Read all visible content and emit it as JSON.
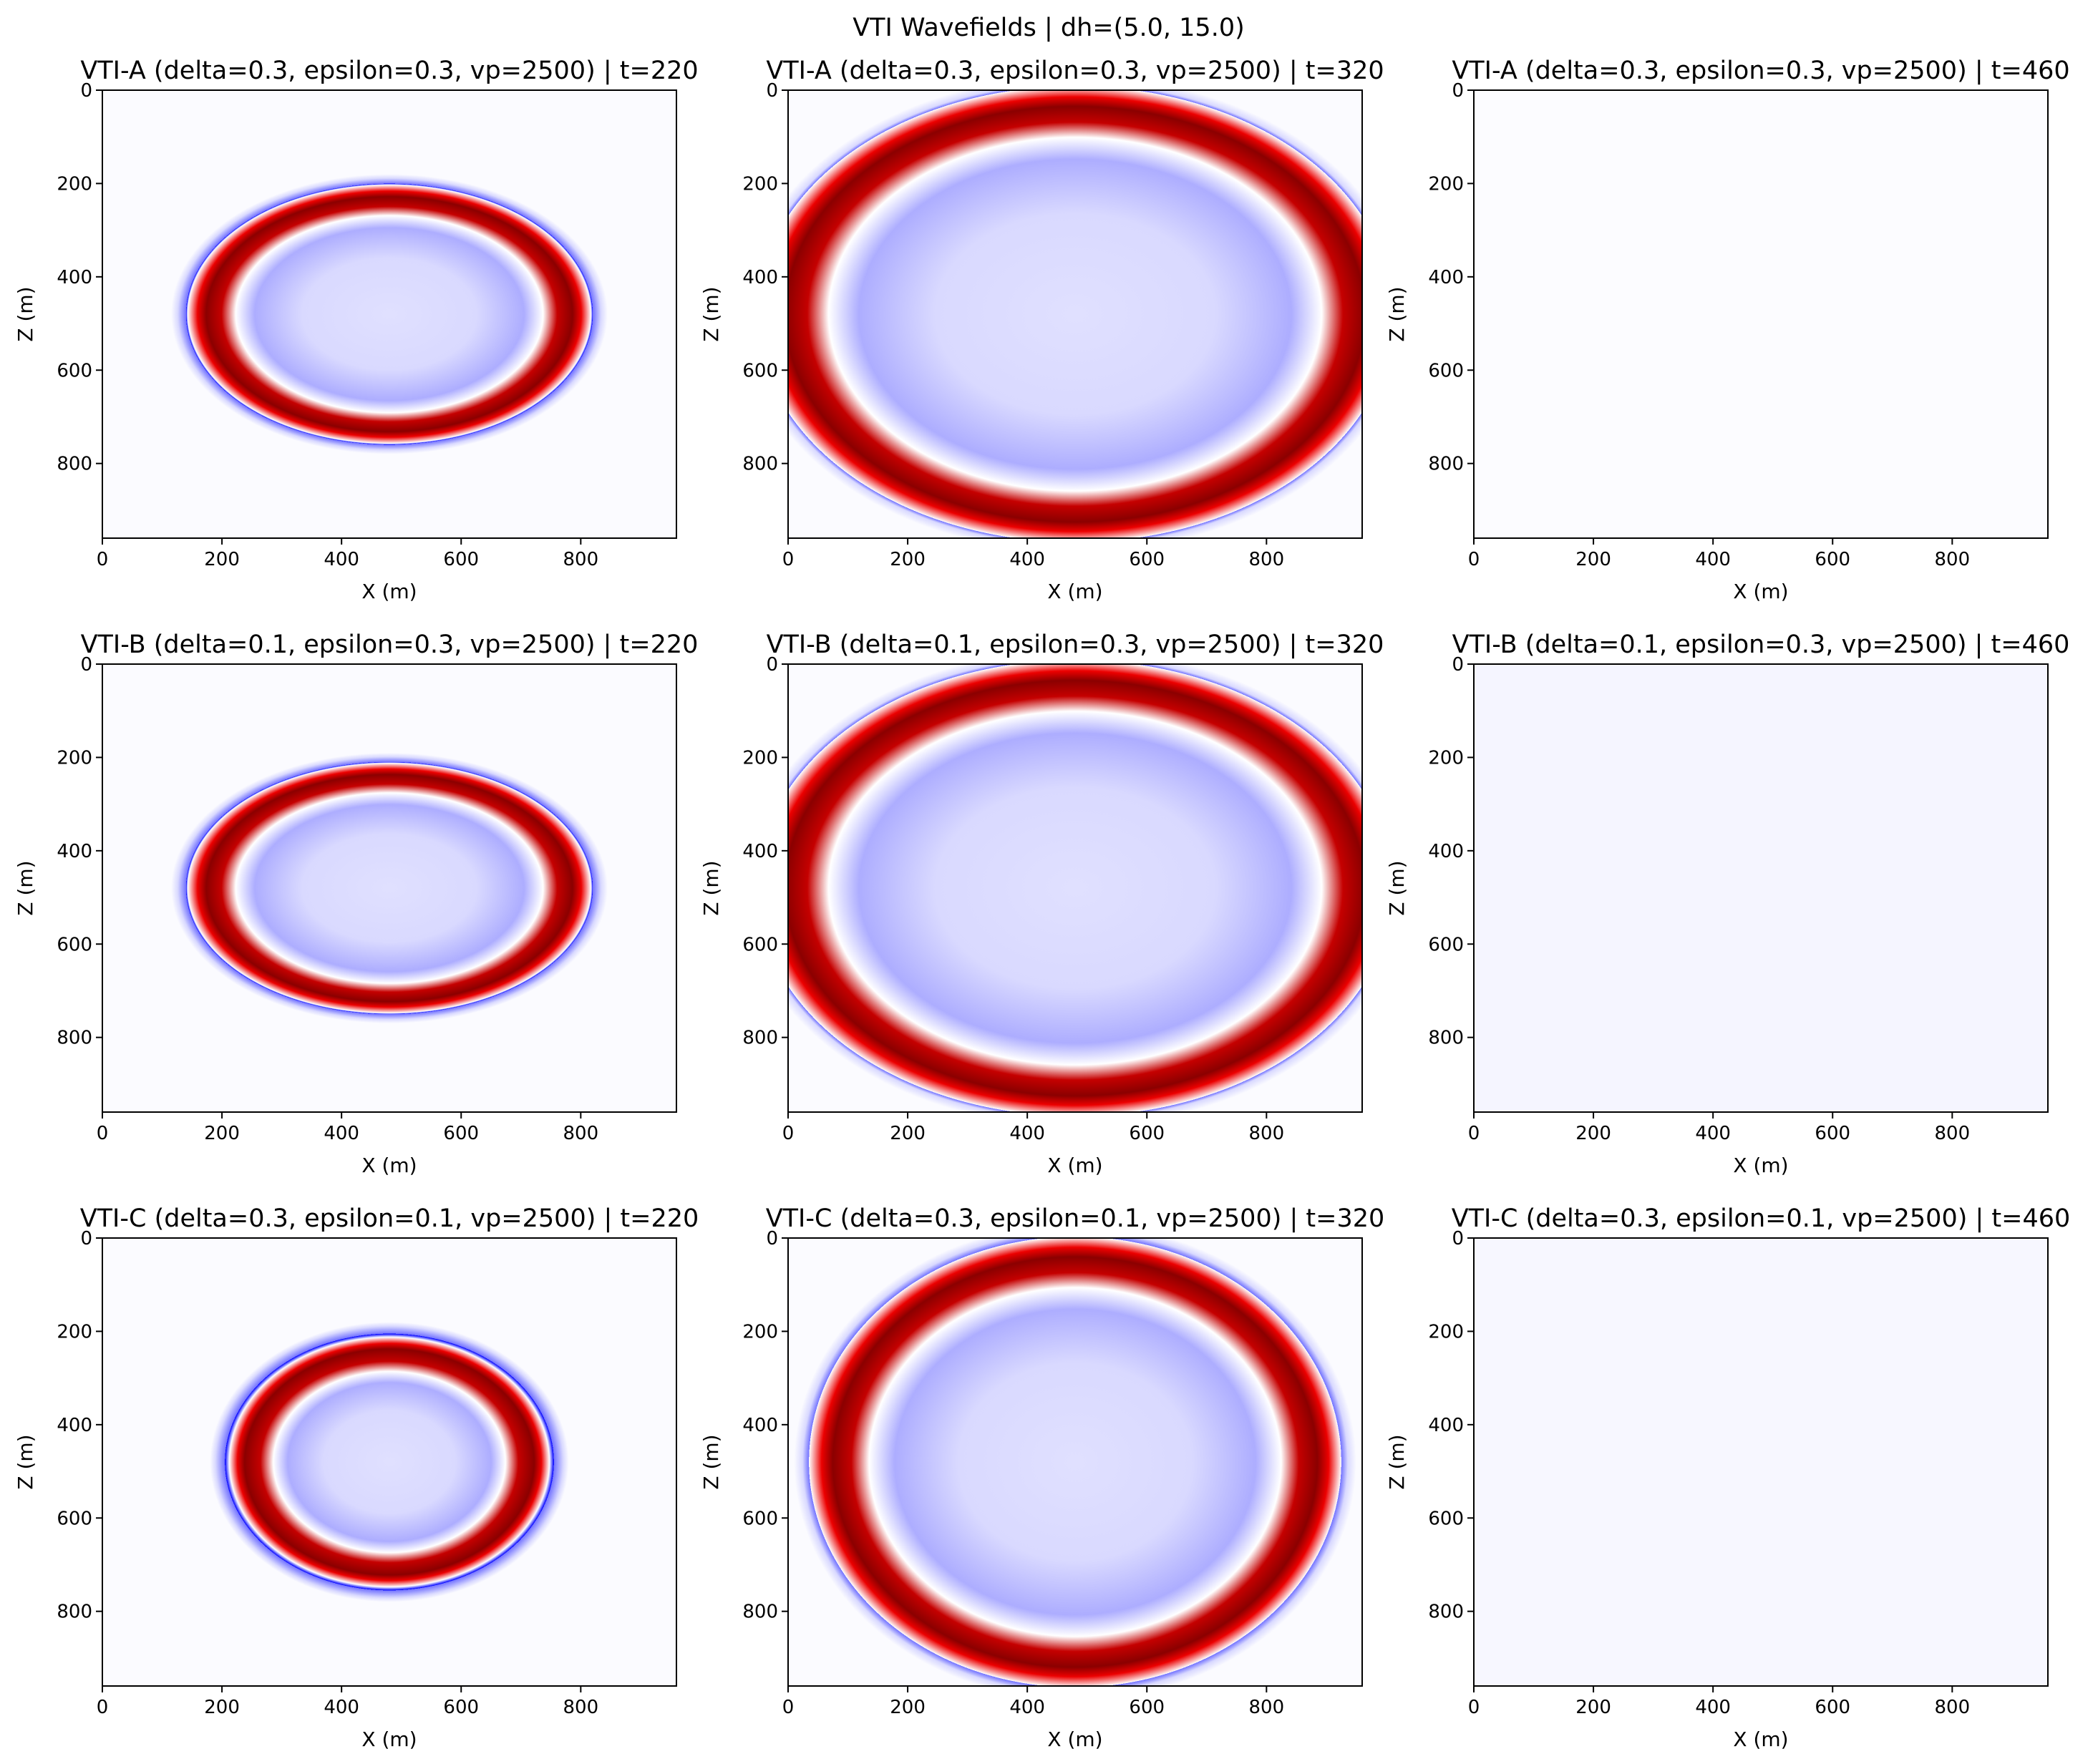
{
  "figure": {
    "title": "VTI Wavefields | dh=(5.0, 15.0)"
  },
  "colors": {
    "negative": "#0000ff",
    "zero": "#ffffff",
    "positive": "#ff0000",
    "positive_peak": "#8b0000",
    "frame": "#000000"
  },
  "chart_data": [
    {
      "type": "heatmap",
      "colormap": "seismic",
      "title": "VTI-A (delta=0.3, epsilon=0.3, vp=2500) | t=220",
      "model": "VTI-A",
      "delta": 0.3,
      "epsilon": 0.3,
      "vp": 2500,
      "t": 220,
      "wavefront": {
        "center_x": 480,
        "center_z": 480,
        "inner_rx": 265,
        "inner_rz": 200,
        "mid_rx": 310,
        "mid_rz": 245,
        "outer_rx": 365,
        "outer_rz": 300
      },
      "xlabel": "X (m)",
      "ylabel": "Z (m)",
      "xlim": [
        0,
        960
      ],
      "ylim": [
        960,
        0
      ],
      "xticks": [
        0,
        200,
        400,
        600,
        800
      ],
      "yticks": [
        0,
        200,
        400,
        600,
        800
      ]
    },
    {
      "type": "heatmap",
      "colormap": "seismic",
      "title": "VTI-A (delta=0.3, epsilon=0.3, vp=2500) | t=320",
      "model": "VTI-A",
      "delta": 0.3,
      "epsilon": 0.3,
      "vp": 2500,
      "t": 320,
      "wavefront": {
        "center_x": 480,
        "center_z": 480,
        "inner_rx": 425,
        "inner_rz": 410,
        "mid_rx": 490,
        "mid_rz": 455,
        "outer_rx": 555,
        "outer_rz": 510
      },
      "xlabel": "X (m)",
      "ylabel": "Z (m)",
      "xlim": [
        0,
        960
      ],
      "ylim": [
        960,
        0
      ],
      "xticks": [
        0,
        200,
        400,
        600,
        800
      ],
      "yticks": [
        0,
        200,
        400,
        600,
        800
      ]
    },
    {
      "type": "heatmap",
      "colormap": "seismic",
      "title": "VTI-A (delta=0.3, epsilon=0.3, vp=2500) | t=460",
      "model": "VTI-A",
      "delta": 0.3,
      "epsilon": 0.3,
      "vp": 2500,
      "t": 460,
      "wavefront": null,
      "background_level": 0.01,
      "xlabel": "X (m)",
      "ylabel": "Z (m)",
      "xlim": [
        0,
        960
      ],
      "ylim": [
        960,
        0
      ],
      "xticks": [
        0,
        200,
        400,
        600,
        800
      ],
      "yticks": [
        0,
        200,
        400,
        600,
        800
      ]
    },
    {
      "type": "heatmap",
      "colormap": "seismic",
      "title": "VTI-B (delta=0.1, epsilon=0.3, vp=2500) | t=220",
      "model": "VTI-B",
      "delta": 0.1,
      "epsilon": 0.3,
      "vp": 2500,
      "t": 220,
      "wavefront": {
        "center_x": 480,
        "center_z": 480,
        "inner_rx": 265,
        "inner_rz": 190,
        "mid_rx": 310,
        "mid_rz": 235,
        "outer_rx": 365,
        "outer_rz": 290
      },
      "xlabel": "X (m)",
      "ylabel": "Z (m)",
      "xlim": [
        0,
        960
      ],
      "ylim": [
        960,
        0
      ],
      "xticks": [
        0,
        200,
        400,
        600,
        800
      ],
      "yticks": [
        0,
        200,
        400,
        600,
        800
      ]
    },
    {
      "type": "heatmap",
      "colormap": "seismic",
      "title": "VTI-B (delta=0.1, epsilon=0.3, vp=2500) | t=320",
      "model": "VTI-B",
      "delta": 0.1,
      "epsilon": 0.3,
      "vp": 2500,
      "t": 320,
      "wavefront": {
        "center_x": 480,
        "center_z": 480,
        "inner_rx": 425,
        "inner_rz": 410,
        "mid_rx": 490,
        "mid_rz": 455,
        "outer_rx": 555,
        "outer_rz": 510
      },
      "xlabel": "X (m)",
      "ylabel": "Z (m)",
      "xlim": [
        0,
        960
      ],
      "ylim": [
        960,
        0
      ],
      "xticks": [
        0,
        200,
        400,
        600,
        800
      ],
      "yticks": [
        0,
        200,
        400,
        600,
        800
      ]
    },
    {
      "type": "heatmap",
      "colormap": "seismic",
      "title": "VTI-B (delta=0.1, epsilon=0.3, vp=2500) | t=460",
      "model": "VTI-B",
      "delta": 0.1,
      "epsilon": 0.3,
      "vp": 2500,
      "t": 460,
      "wavefront": null,
      "background_level": 0.04,
      "xlabel": "X (m)",
      "ylabel": "Z (m)",
      "xlim": [
        0,
        960
      ],
      "ylim": [
        960,
        0
      ],
      "xticks": [
        0,
        200,
        400,
        600,
        800
      ],
      "yticks": [
        0,
        200,
        400,
        600,
        800
      ]
    },
    {
      "type": "heatmap",
      "colormap": "seismic",
      "title": "VTI-C (delta=0.3, epsilon=0.1, vp=2500) | t=220",
      "model": "VTI-C",
      "delta": 0.3,
      "epsilon": 0.1,
      "vp": 2500,
      "t": 220,
      "wavefront": {
        "center_x": 480,
        "center_z": 480,
        "inner_rx": 200,
        "inner_rz": 200,
        "mid_rx": 245,
        "mid_rz": 245,
        "outer_rx": 300,
        "outer_rz": 300
      },
      "xlabel": "X (m)",
      "ylabel": "Z (m)",
      "xlim": [
        0,
        960
      ],
      "ylim": [
        960,
        0
      ],
      "xticks": [
        0,
        200,
        400,
        600,
        800
      ],
      "yticks": [
        0,
        200,
        400,
        600,
        800
      ]
    },
    {
      "type": "heatmap",
      "colormap": "seismic",
      "title": "VTI-C (delta=0.3, epsilon=0.1, vp=2500) | t=320",
      "model": "VTI-C",
      "delta": 0.3,
      "epsilon": 0.1,
      "vp": 2500,
      "t": 320,
      "wavefront": {
        "center_x": 480,
        "center_z": 480,
        "inner_rx": 355,
        "inner_rz": 410,
        "mid_rx": 410,
        "mid_rz": 455,
        "outer_rx": 470,
        "outer_rz": 510
      },
      "xlabel": "X (m)",
      "ylabel": "Z (m)",
      "xlim": [
        0,
        960
      ],
      "ylim": [
        960,
        0
      ],
      "xticks": [
        0,
        200,
        400,
        600,
        800
      ],
      "yticks": [
        0,
        200,
        400,
        600,
        800
      ]
    },
    {
      "type": "heatmap",
      "colormap": "seismic",
      "title": "VTI-C (delta=0.3, epsilon=0.1, vp=2500) | t=460",
      "model": "VTI-C",
      "delta": 0.3,
      "epsilon": 0.1,
      "vp": 2500,
      "t": 460,
      "wavefront": null,
      "background_level": 0.03,
      "xlabel": "X (m)",
      "ylabel": "Z (m)",
      "xlim": [
        0,
        960
      ],
      "ylim": [
        960,
        0
      ],
      "xticks": [
        0,
        200,
        400,
        600,
        800
      ],
      "yticks": [
        0,
        200,
        400,
        600,
        800
      ]
    }
  ]
}
